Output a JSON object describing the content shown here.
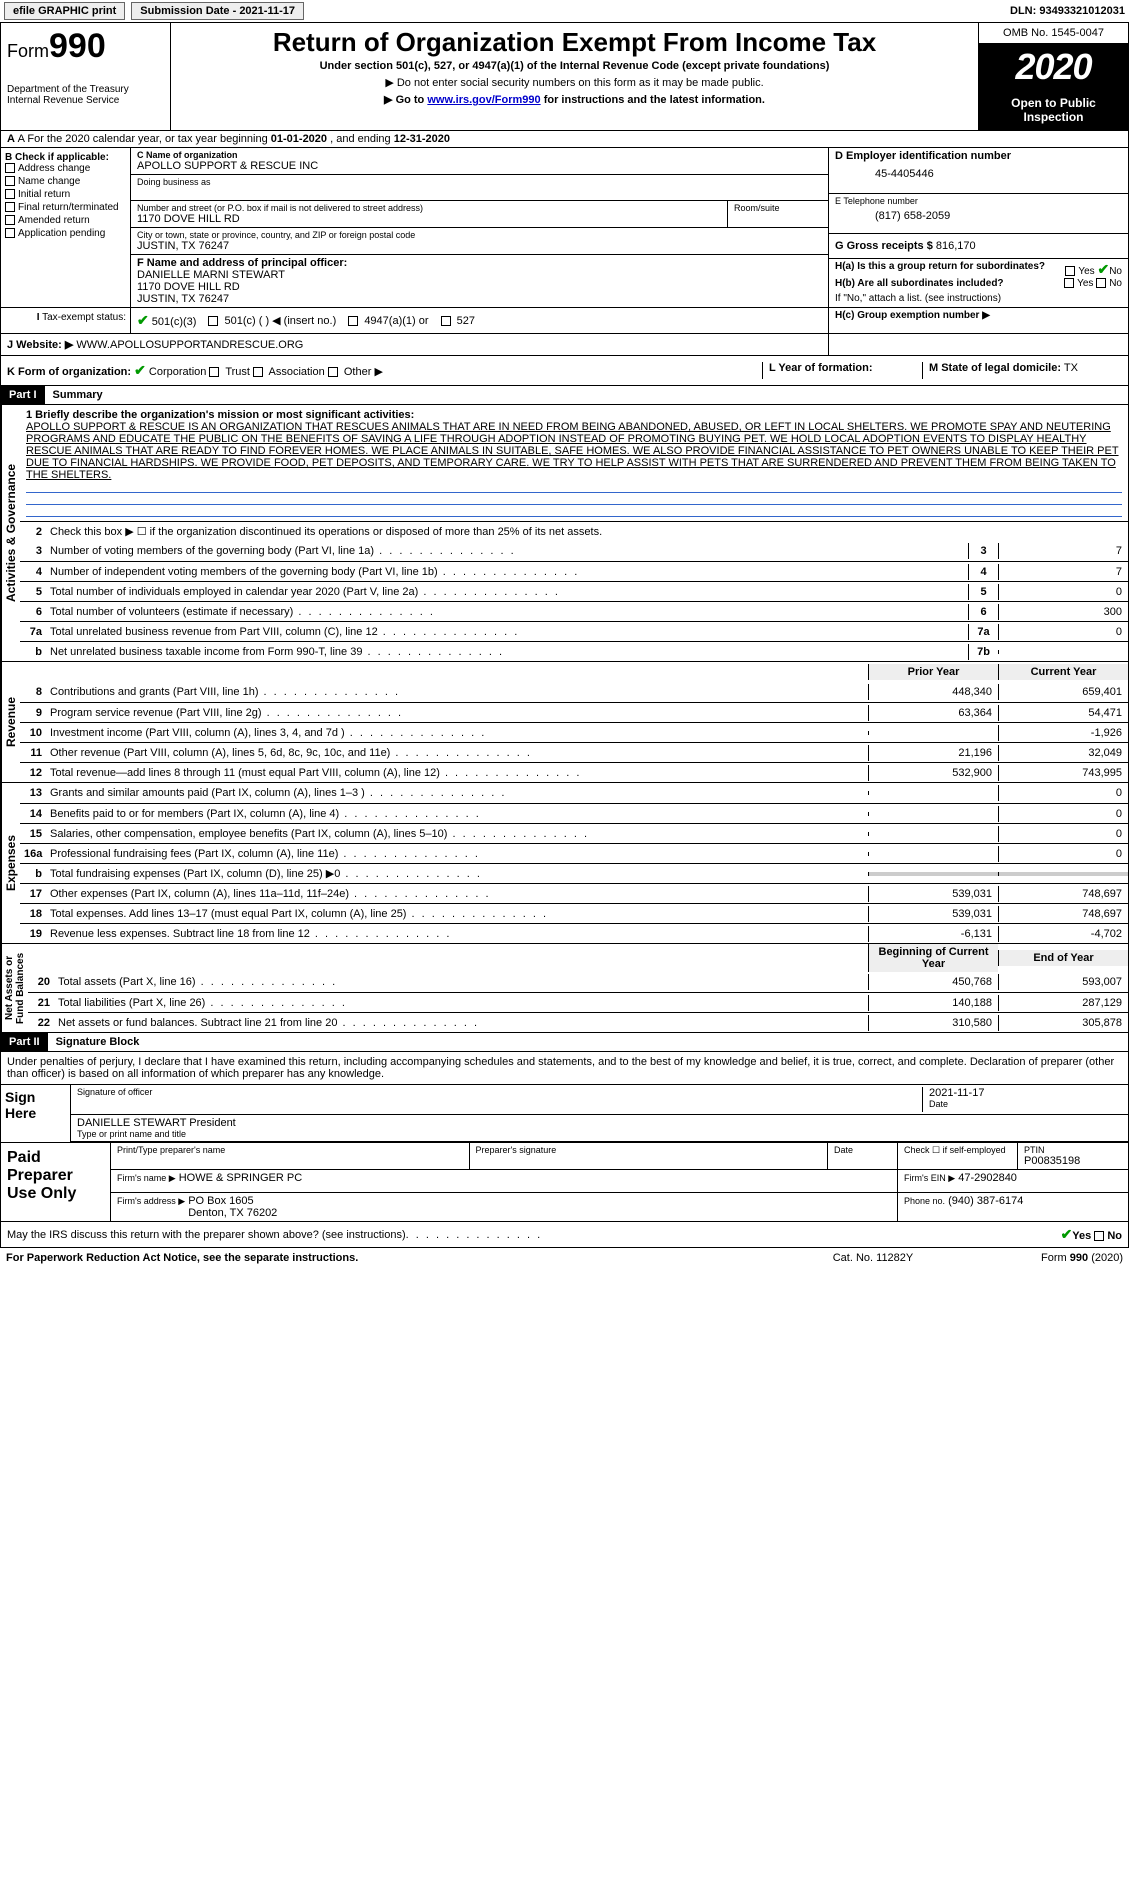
{
  "topbar": {
    "efile": "efile GRAPHIC print",
    "subdate_label": "Submission Date - 2021-11-17",
    "dln": "DLN: 93493321012031"
  },
  "header": {
    "form_prefix": "Form",
    "form_no": "990",
    "dept": "Department of the Treasury\nInternal Revenue Service",
    "title": "Return of Organization Exempt From Income Tax",
    "sub": "Under section 501(c), 527, or 4947(a)(1) of the Internal Revenue Code (except private foundations)",
    "note1": "▶ Do not enter social security numbers on this form as it may be made public.",
    "note2_pre": "▶ Go to ",
    "note2_link": "www.irs.gov/Form990",
    "note2_post": " for instructions and the latest information.",
    "omb": "OMB No. 1545-0047",
    "year": "2020",
    "open": "Open to Public\nInspection"
  },
  "rowA": {
    "prefix": "A For the 2020 calendar year, or tax year beginning ",
    "begin": "01-01-2020",
    "mid": " , and ending ",
    "end": "12-31-2020"
  },
  "B": {
    "hdr": "B Check if applicable:",
    "opts": [
      "Address change",
      "Name change",
      "Initial return",
      "Final return/terminated",
      "Amended return",
      "Application pending"
    ]
  },
  "C": {
    "name_lbl": "C Name of organization",
    "name": "APOLLO SUPPORT & RESCUE INC",
    "dba_lbl": "Doing business as",
    "addr_lbl": "Number and street (or P.O. box if mail is not delivered to street address)",
    "addr": "1170 DOVE HILL RD",
    "room_lbl": "Room/suite",
    "city_lbl": "City or town, state or province, country, and ZIP or foreign postal code",
    "city": "JUSTIN, TX  76247",
    "officer_lbl": "F  Name and address of principal officer:",
    "officer": "DANIELLE MARNI STEWART\n1170 DOVE HILL RD\nJUSTIN, TX  76247"
  },
  "D": {
    "lbl": "D Employer identification number",
    "val": "45-4405446"
  },
  "E": {
    "lbl": "E Telephone number",
    "val": "(817) 658-2059"
  },
  "G": {
    "lbl": "G Gross receipts $",
    "val": "816,170"
  },
  "H": {
    "a": "H(a)  Is this a group return for subordinates?",
    "b": "H(b)  Are all subordinates included?",
    "note": "If \"No,\" attach a list. (see instructions)",
    "c": "H(c)  Group exemption number ▶",
    "yes": "Yes",
    "no": "No"
  },
  "I": {
    "lbl": "Tax-exempt status:",
    "opts": [
      "501(c)(3)",
      "501(c) (   ) ◀ (insert no.)",
      "4947(a)(1) or",
      "527"
    ]
  },
  "J": {
    "lbl": "J Website: ▶",
    "val": "WWW.APOLLOSUPPORTANDRESCUE.ORG"
  },
  "K": {
    "lbl": "K Form of organization:",
    "opts": [
      "Corporation",
      "Trust",
      "Association",
      "Other ▶"
    ]
  },
  "L": {
    "lbl": "L Year of formation:",
    "val": ""
  },
  "M": {
    "lbl": "M State of legal domicile:",
    "val": "TX"
  },
  "part1": {
    "hdr": "Part I",
    "title": "Summary",
    "l1_lbl": "1  Briefly describe the organization's mission or most significant activities:",
    "mission": "APOLLO SUPPORT & RESCUE IS AN ORGANIZATION THAT RESCUES ANIMALS THAT ARE IN NEED FROM BEING ABANDONED, ABUSED, OR LEFT IN LOCAL SHELTERS. WE PROMOTE SPAY AND NEUTERING PROGRAMS AND EDUCATE THE PUBLIC ON THE BENEFITS OF SAVING A LIFE THROUGH ADOPTION INSTEAD OF PROMOTING BUYING PET. WE HOLD LOCAL ADOPTION EVENTS TO DISPLAY HEALTHY RESCUE ANIMALS THAT ARE READY TO FIND FOREVER HOMES. WE PLACE ANIMALS IN SUITABLE, SAFE HOMES. WE ALSO PROVIDE FINANCIAL ASSISTANCE TO PET OWNERS UNABLE TO KEEP THEIR PET DUE TO FINANCIAL HARDSHIPS. WE PROVIDE FOOD, PET DEPOSITS, AND TEMPORARY CARE. WE TRY TO HELP ASSIST WITH PETS THAT ARE SURRENDERED AND PREVENT THEM FROM BEING TAKEN TO THE SHELTERS.",
    "l2": "Check this box ▶ ☐ if the organization discontinued its operations or disposed of more than 25% of its net assets.",
    "rows_gov": [
      {
        "n": "3",
        "t": "Number of voting members of the governing body (Part VI, line 1a)",
        "box": "3",
        "v": "7"
      },
      {
        "n": "4",
        "t": "Number of independent voting members of the governing body (Part VI, line 1b)",
        "box": "4",
        "v": "7"
      },
      {
        "n": "5",
        "t": "Total number of individuals employed in calendar year 2020 (Part V, line 2a)",
        "box": "5",
        "v": "0"
      },
      {
        "n": "6",
        "t": "Total number of volunteers (estimate if necessary)",
        "box": "6",
        "v": "300"
      },
      {
        "n": "7a",
        "t": "Total unrelated business revenue from Part VIII, column (C), line 12",
        "box": "7a",
        "v": "0"
      },
      {
        "n": "b",
        "t": "Net unrelated business taxable income from Form 990-T, line 39",
        "box": "7b",
        "v": ""
      }
    ],
    "prior_hdr": "Prior Year",
    "curr_hdr": "Current Year",
    "rows_rev": [
      {
        "n": "8",
        "t": "Contributions and grants (Part VIII, line 1h)",
        "p": "448,340",
        "c": "659,401"
      },
      {
        "n": "9",
        "t": "Program service revenue (Part VIII, line 2g)",
        "p": "63,364",
        "c": "54,471"
      },
      {
        "n": "10",
        "t": "Investment income (Part VIII, column (A), lines 3, 4, and 7d )",
        "p": "",
        "c": "-1,926"
      },
      {
        "n": "11",
        "t": "Other revenue (Part VIII, column (A), lines 5, 6d, 8c, 9c, 10c, and 11e)",
        "p": "21,196",
        "c": "32,049"
      },
      {
        "n": "12",
        "t": "Total revenue—add lines 8 through 11 (must equal Part VIII, column (A), line 12)",
        "p": "532,900",
        "c": "743,995"
      }
    ],
    "rows_exp": [
      {
        "n": "13",
        "t": "Grants and similar amounts paid (Part IX, column (A), lines 1–3 )",
        "p": "",
        "c": "0"
      },
      {
        "n": "14",
        "t": "Benefits paid to or for members (Part IX, column (A), line 4)",
        "p": "",
        "c": "0"
      },
      {
        "n": "15",
        "t": "Salaries, other compensation, employee benefits (Part IX, column (A), lines 5–10)",
        "p": "",
        "c": "0"
      },
      {
        "n": "16a",
        "t": "Professional fundraising fees (Part IX, column (A), line 11e)",
        "p": "",
        "c": "0"
      },
      {
        "n": "b",
        "t": "Total fundraising expenses (Part IX, column (D), line 25) ▶0",
        "p": "grey",
        "c": "grey"
      },
      {
        "n": "17",
        "t": "Other expenses (Part IX, column (A), lines 11a–11d, 11f–24e)",
        "p": "539,031",
        "c": "748,697"
      },
      {
        "n": "18",
        "t": "Total expenses. Add lines 13–17 (must equal Part IX, column (A), line 25)",
        "p": "539,031",
        "c": "748,697"
      },
      {
        "n": "19",
        "t": "Revenue less expenses. Subtract line 18 from line 12",
        "p": "-6,131",
        "c": "-4,702"
      }
    ],
    "boy_hdr": "Beginning of Current Year",
    "eoy_hdr": "End of Year",
    "rows_net": [
      {
        "n": "20",
        "t": "Total assets (Part X, line 16)",
        "p": "450,768",
        "c": "593,007"
      },
      {
        "n": "21",
        "t": "Total liabilities (Part X, line 26)",
        "p": "140,188",
        "c": "287,129"
      },
      {
        "n": "22",
        "t": "Net assets or fund balances. Subtract line 21 from line 20",
        "p": "310,580",
        "c": "305,878"
      }
    ]
  },
  "vlabels": {
    "gov": "Activities & Governance",
    "rev": "Revenue",
    "exp": "Expenses",
    "net": "Net Assets or\nFund Balances"
  },
  "part2": {
    "hdr": "Part II",
    "title": "Signature Block",
    "perjury": "Under penalties of perjury, I declare that I have examined this return, including accompanying schedules and statements, and to the best of my knowledge and belief, it is true, correct, and complete. Declaration of preparer (other than officer) is based on all information of which preparer has any knowledge."
  },
  "sign": {
    "here": "Sign Here",
    "sig_lbl": "Signature of officer",
    "date_lbl": "Date",
    "date": "2021-11-17",
    "name": "DANIELLE STEWART President",
    "name_lbl": "Type or print name and title"
  },
  "prep": {
    "here": "Paid Preparer Use Only",
    "name_lbl": "Print/Type preparer's name",
    "sig_lbl": "Preparer's signature",
    "date_lbl": "Date",
    "self_lbl": "Check ☐ if self-employed",
    "ptin_lbl": "PTIN",
    "ptin": "P00835198",
    "firm_name_lbl": "Firm's name     ▶",
    "firm_name": "HOWE & SPRINGER PC",
    "firm_ein_lbl": "Firm's EIN ▶",
    "firm_ein": "47-2902840",
    "firm_addr_lbl": "Firm's address ▶",
    "firm_addr": "PO Box 1605\nDenton, TX  76202",
    "phone_lbl": "Phone no.",
    "phone": "(940) 387-6174"
  },
  "footer": {
    "discuss": "May the IRS discuss this return with the preparer shown above? (see instructions)",
    "yes": "Yes",
    "no": "No",
    "pra": "For Paperwork Reduction Act Notice, see the separate instructions.",
    "cat": "Cat. No. 11282Y",
    "form": "Form 990 (2020)"
  }
}
